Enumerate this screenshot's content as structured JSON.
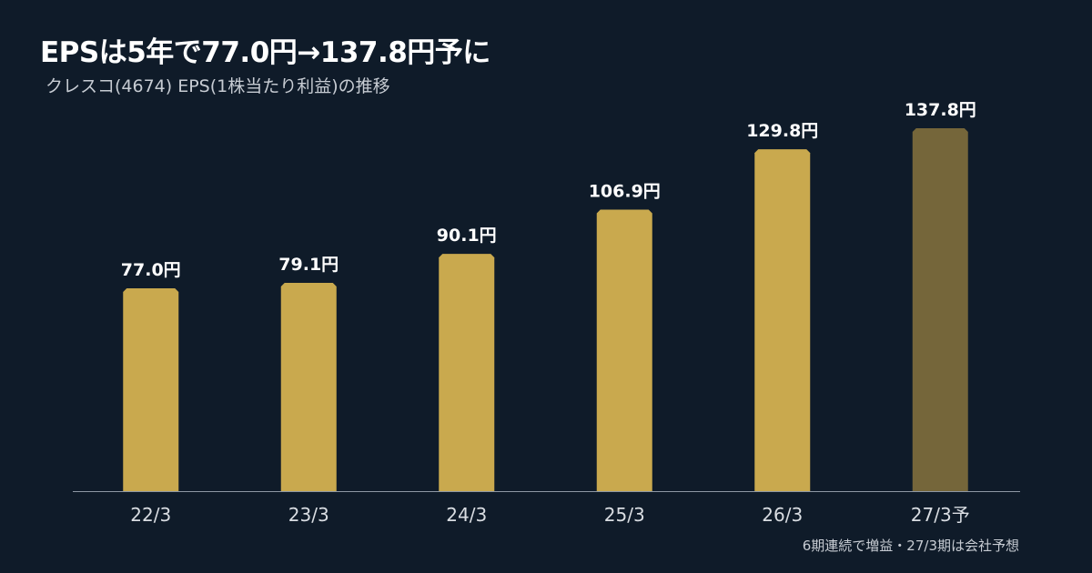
{
  "header": {
    "title": "EPSは5年で77.0円→137.8円予に",
    "subtitle": "クレスコ(4674) EPS(1株当たり利益)の推移"
  },
  "footnote": "6期連続で増益・27/3期は会社予想",
  "colors": {
    "background": "#0f1b29",
    "actual_bar": "#c9a94e",
    "forecast_bar": "#75663a",
    "axis_line": "#8e98a4",
    "label_text": "#ffffff",
    "tick_text": "#d9dde2"
  },
  "chart_data": {
    "type": "bar",
    "title": "EPSは5年で77.0円→137.8円予に",
    "subtitle": "クレスコ(4674) EPS(1株当たり利益)の推移",
    "categories": [
      "22/3",
      "23/3",
      "24/3",
      "25/3",
      "26/3",
      "27/3予"
    ],
    "values": [
      77.0,
      79.1,
      90.1,
      106.9,
      129.8,
      137.8
    ],
    "value_labels": [
      "77.0円",
      "79.1円",
      "90.1円",
      "106.9円",
      "129.8円",
      "137.8円"
    ],
    "forecast": [
      false,
      false,
      false,
      false,
      false,
      true
    ],
    "xlabel": "",
    "ylabel": "",
    "ylim": [
      0,
      137.8
    ],
    "grid": false,
    "legend": "none"
  }
}
